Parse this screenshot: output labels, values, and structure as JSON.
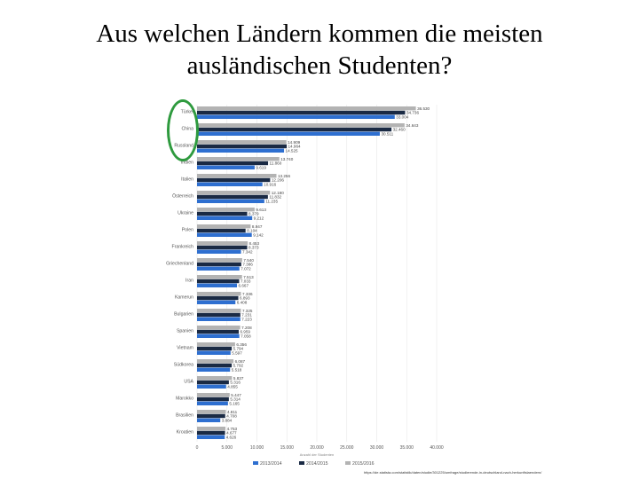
{
  "title": {
    "line1": "Aus welchen Ländern kommen die meisten",
    "line2": "ausländischen Studenten?"
  },
  "source": "https://de.statista.com/statistik/daten/studie/301225/umfrage/studierende-in-deutschland-nach-herkunftslaendern/",
  "colors": {
    "series_2013": "#2e6fd0",
    "series_2014": "#1a2a44",
    "series_2015": "#b3b3b3",
    "highlight": "#2e9a3e",
    "grid": "#e6e6e6"
  },
  "chart_data": {
    "type": "bar",
    "orientation": "horizontal",
    "categories": [
      "Türkei",
      "China",
      "Russland",
      "Indien",
      "Italien",
      "Österreich",
      "Ukraine",
      "Polen",
      "Frankreich",
      "Griechenland",
      "Iran",
      "Kamerun",
      "Bulgarien",
      "Spanien",
      "Vietnam",
      "Südkorea",
      "USA",
      "Marokko",
      "Brasilien",
      "Kroatien"
    ],
    "series": [
      {
        "name": "2015/2016",
        "color": "#b3b3b3",
        "values": [
          36530,
          34643,
          14909,
          13740,
          13256,
          12180,
          9613,
          8947,
          8453,
          7540,
          7513,
          7336,
          7325,
          7208,
          6356,
          6087,
          5837,
          5447,
          4811,
          4753
        ]
      },
      {
        "name": "2014/2015",
        "color": "#1a2a44",
        "values": [
          34736,
          32460,
          14964,
          11860,
          12206,
          11832,
          8379,
          8104,
          8373,
          7386,
          7033,
          6893,
          7231,
          6959,
          5794,
          5792,
          5316,
          5314,
          4708,
          4677
        ]
      },
      {
        "name": "2013/2014",
        "color": "#2e6fd0",
        "values": [
          33004,
          30511,
          14525,
          9619,
          10916,
          11235,
          9212,
          9142,
          7342,
          7072,
          6667,
          6408,
          7223,
          7058,
          5597,
          5518,
          4855,
          5165,
          3884,
          4626
        ]
      }
    ],
    "data_labels": [
      [
        "36.530",
        "34.736",
        "33.004"
      ],
      [
        "34.643",
        "32.460",
        "30.511"
      ],
      [
        "14.909",
        "14.964",
        "14.525"
      ],
      [
        "13.740",
        "11.860",
        "9.619"
      ],
      [
        "13.256",
        "12.206",
        "10.916"
      ],
      [
        "12.180",
        "11.832",
        "11.235"
      ],
      [
        "9.613",
        "8.379",
        "9.212"
      ],
      [
        "8.947",
        "8.104",
        "9.142"
      ],
      [
        "8.453",
        "8.373",
        "7.342"
      ],
      [
        "7.540",
        "7.386",
        "7.072"
      ],
      [
        "7.513",
        "7.033",
        "6.667"
      ],
      [
        "7.336",
        "6.893",
        "6.408"
      ],
      [
        "7.325",
        "7.231",
        "7.223"
      ],
      [
        "7.208",
        "6.959",
        "7.058"
      ],
      [
        "6.356",
        "5.794",
        "5.597"
      ],
      [
        "6.087",
        "5.792",
        "5.518"
      ],
      [
        "5.837",
        "5.316",
        "4.855"
      ],
      [
        "5.447",
        "5.314",
        "5.165"
      ],
      [
        "4.811",
        "4.708",
        "3.884"
      ],
      [
        "4.753",
        "4.677",
        "4.626"
      ]
    ],
    "xlim": [
      0,
      40000
    ],
    "xticks": [
      0,
      5000,
      10000,
      15000,
      20000,
      25000,
      30000,
      35000,
      40000
    ],
    "xtick_labels": [
      "0",
      "5.000",
      "10.000",
      "15.000",
      "20.000",
      "25.000",
      "30.000",
      "35.000",
      "40.000"
    ],
    "xlabel": "Anzahl der Studenten",
    "legend": [
      "2013/2014",
      "2014/2015",
      "2015/2016"
    ],
    "legend_colors": [
      "#2e6fd0",
      "#1a2a44",
      "#b3b3b3"
    ],
    "legend_position": "bottom",
    "grid": true
  }
}
